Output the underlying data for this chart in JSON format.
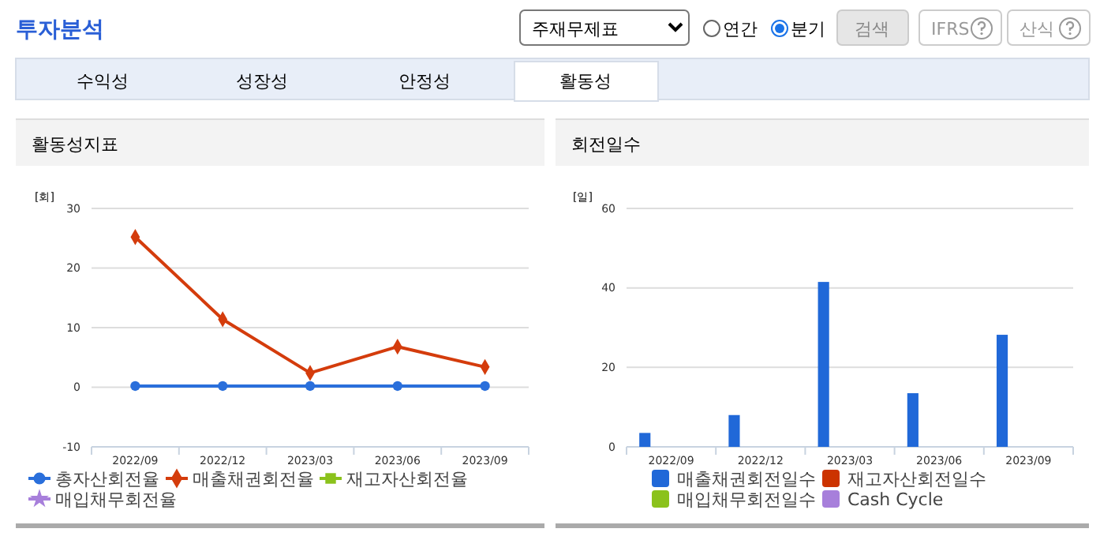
{
  "chart_data": [
    {
      "type": "other",
      "title": "투자분석",
      "annotations": [
        "주재무제표",
        "연간",
        "분기",
        "검색",
        "IFRS",
        "산식",
        "수익성",
        "성장성",
        "안정성",
        "활동성"
      ]
    },
    {
      "type": "line",
      "title": "활동성지표",
      "ylabel": "[회]",
      "categories": [
        "2022/09",
        "2022/12",
        "2023/03",
        "2023/06",
        "2023/09"
      ],
      "ylim": [
        -10,
        30
      ],
      "yticks": [
        -10,
        0,
        10,
        20,
        30
      ],
      "grid": "y",
      "legend": "bottom",
      "series": [
        {
          "name": "총자산회전율",
          "color": "#2a6fdb",
          "marker": "circle",
          "values": [
            0.2,
            0.2,
            0.2,
            0.2,
            0.2
          ]
        },
        {
          "name": "매출채권회전율",
          "color": "#d43c0c",
          "marker": "diamond",
          "values": [
            25.2,
            11.4,
            2.4,
            6.8,
            3.4
          ]
        },
        {
          "name": "재고자산회전율",
          "color": "#8bc21c",
          "marker": "square",
          "values": [
            null,
            null,
            null,
            null,
            null
          ]
        },
        {
          "name": "매입채무회전율",
          "color": "#a77fdb",
          "marker": "star",
          "values": [
            null,
            null,
            null,
            null,
            null
          ]
        }
      ]
    },
    {
      "type": "bar",
      "title": "회전일수",
      "ylabel": "[일]",
      "categories": [
        "2022/09",
        "2022/12",
        "2023/03",
        "2023/06",
        "2023/09"
      ],
      "ylim": [
        0,
        60
      ],
      "yticks": [
        0,
        20,
        40,
        60
      ],
      "grid": "y",
      "legend": "bottom",
      "series": [
        {
          "name": "매출채권회전일수",
          "color": "#2068d8",
          "values": [
            3.5,
            8,
            41.5,
            13.5,
            28.2
          ]
        },
        {
          "name": "재고자산회전일수",
          "color": "#cc3300",
          "values": [
            null,
            null,
            null,
            null,
            null
          ]
        },
        {
          "name": "매입채무회전일수",
          "color": "#8bc21c",
          "values": [
            null,
            null,
            null,
            null,
            null
          ]
        },
        {
          "name": "Cash Cycle",
          "color": "#a77fdb",
          "values": [
            null,
            null,
            null,
            null,
            null
          ]
        }
      ]
    }
  ]
}
